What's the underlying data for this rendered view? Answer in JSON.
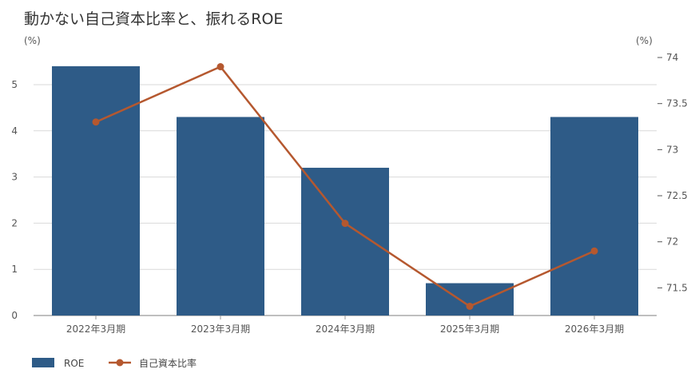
{
  "chart_data": {
    "type": "bar",
    "title": "動かない自己資本比率と、振れるROE",
    "left_unit": "(%)",
    "right_unit": "(%)",
    "categories": [
      "2022年3月期",
      "2023年3月期",
      "2024年3月期",
      "2025年3月期",
      "2026年3月期"
    ],
    "series": [
      {
        "name": "ROE",
        "kind": "bar",
        "axis": "left",
        "color": "#2e5b87",
        "values": [
          5.4,
          4.3,
          3.2,
          0.7,
          4.3
        ]
      },
      {
        "name": "自己資本比率",
        "kind": "line",
        "axis": "right",
        "color": "#b5582f",
        "values": [
          73.3,
          73.9,
          72.2,
          71.3,
          71.9
        ]
      }
    ],
    "left_axis": {
      "min": 0,
      "max": 5.5,
      "ticks": [
        "0",
        "1",
        "2",
        "3",
        "4",
        "5"
      ]
    },
    "right_axis": {
      "min": 71.2,
      "max": 74.0,
      "ticks": [
        "71.5",
        "72",
        "72.5",
        "73",
        "73.5",
        "74"
      ]
    },
    "grid": true,
    "legend_position": "bottom-left"
  }
}
